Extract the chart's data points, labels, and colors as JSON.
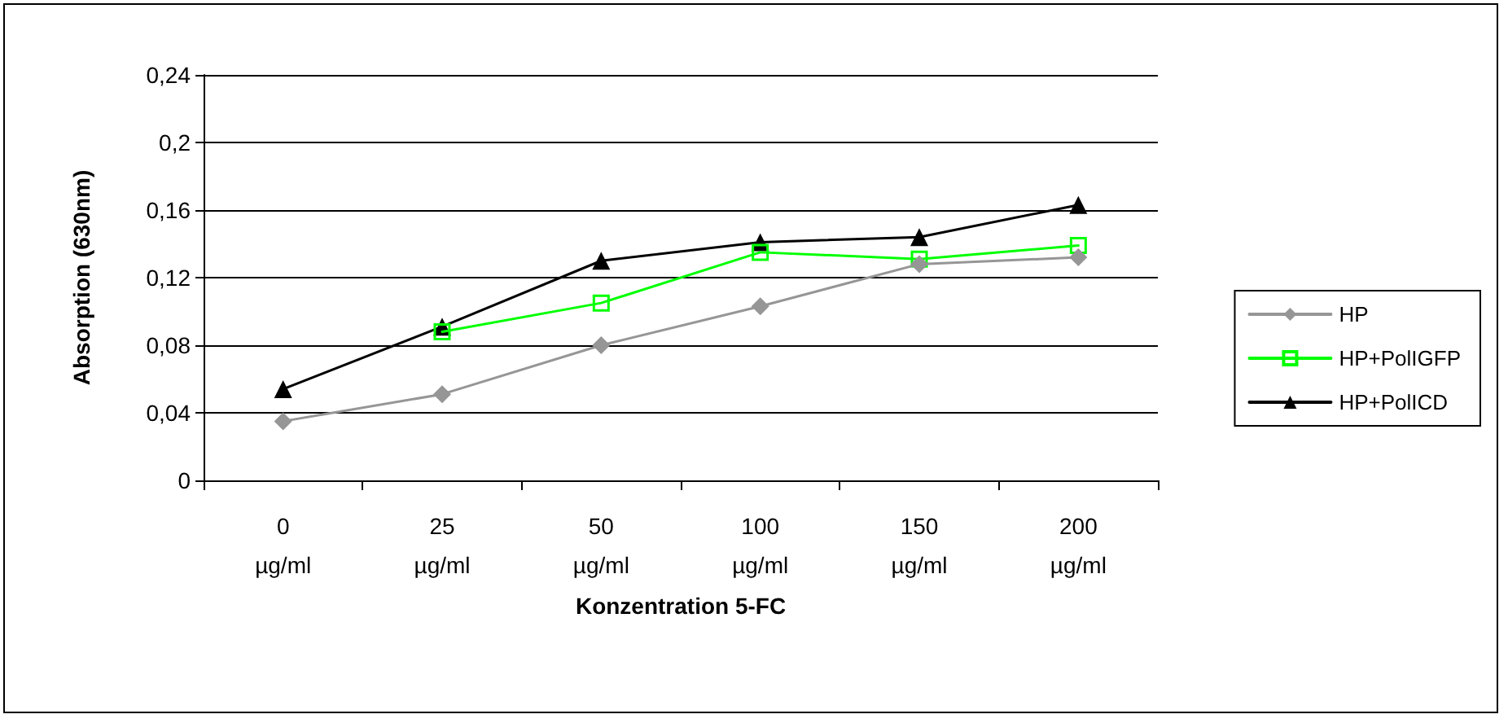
{
  "chart_data": {
    "type": "line",
    "xlabel": "Konzentration 5-FC",
    "ylabel": "Absorption (630nm)",
    "categories": [
      "0 µg/ml",
      "25 µg/ml",
      "50 µg/ml",
      "100 µg/ml",
      "150 µg/ml",
      "200 µg/ml"
    ],
    "series": [
      {
        "name": "HP",
        "color": "#969696",
        "marker": "diamond",
        "values": [
          0.035,
          0.051,
          0.08,
          0.103,
          0.128,
          0.132
        ]
      },
      {
        "name": "HP+PolIGFP",
        "color": "#00ff00",
        "marker": "square",
        "values": [
          null,
          0.088,
          0.105,
          0.135,
          0.131,
          0.139
        ]
      },
      {
        "name": "HP+PolICD",
        "color": "#000000",
        "marker": "triangle",
        "values": [
          0.054,
          0.091,
          0.13,
          0.141,
          0.144,
          0.163
        ]
      }
    ],
    "ylim": [
      0,
      0.24
    ],
    "yticks": [
      {
        "value": 0,
        "label": "0"
      },
      {
        "value": 0.04,
        "label": "0,04"
      },
      {
        "value": 0.08,
        "label": "0,08"
      },
      {
        "value": 0.12,
        "label": "0,12"
      },
      {
        "value": 0.16,
        "label": "0,16"
      },
      {
        "value": 0.2,
        "label": "0,2"
      },
      {
        "value": 0.24,
        "label": "0,24"
      }
    ],
    "grid": "y",
    "legend": "right",
    "line_style": "solid"
  }
}
